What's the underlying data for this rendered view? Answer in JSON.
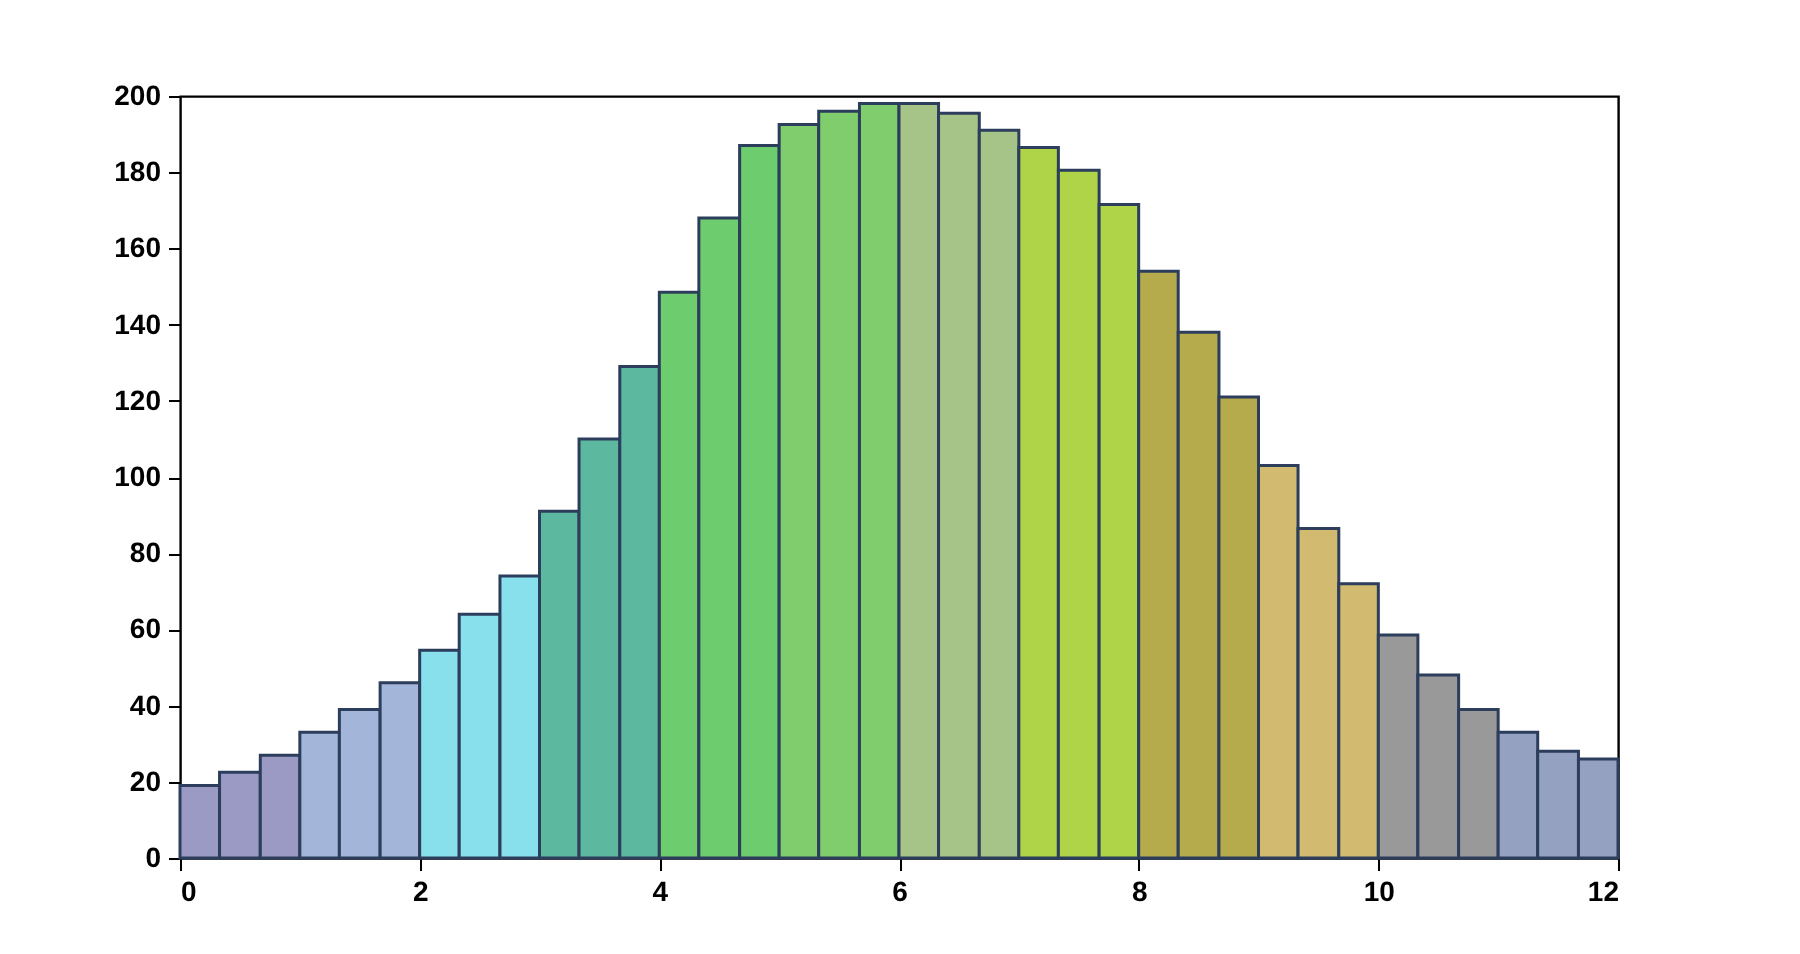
{
  "chart_data": {
    "type": "histogram",
    "bins": [
      0,
      0.33,
      0.67,
      1,
      1.33,
      1.67,
      2,
      2.33,
      2.67,
      3,
      3.33,
      3.67,
      4,
      4.33,
      4.67,
      5,
      5.33,
      5.67,
      6,
      6.33,
      6.67,
      7,
      7.33,
      7.67,
      8,
      8.33,
      8.67,
      9,
      9.33,
      9.67,
      10,
      10.33,
      10.67,
      11,
      11.33,
      11.67,
      12
    ],
    "values": [
      19,
      22.5,
      27,
      33,
      39,
      46,
      54.5,
      64,
      74,
      91,
      110,
      129,
      148.5,
      168,
      187,
      192.5,
      196,
      198,
      198,
      195.5,
      191,
      186.5,
      180.5,
      171.5,
      154,
      138,
      121,
      103,
      86.5,
      72,
      58.5,
      48,
      39,
      33,
      28,
      26
    ],
    "colors": [
      "#9a9ac4",
      "#9a9ac4",
      "#9a9ac4",
      "#a3b5d9",
      "#a3b5d9",
      "#a3b5d9",
      "#87e0ec",
      "#87e0ec",
      "#87e0ec",
      "#5db8a0",
      "#5db8a0",
      "#5db8a0",
      "#6dcc6e",
      "#6dcc6e",
      "#6dcc6e",
      "#7fcd6c",
      "#7fcd6c",
      "#7fcd6c",
      "#a6c388",
      "#a6c388",
      "#a6c388",
      "#afd448",
      "#afd448",
      "#afd448",
      "#b5ab4d",
      "#b5ab4d",
      "#b5ab4d",
      "#d2bb70",
      "#d2bb70",
      "#d2bb70",
      "#999999",
      "#999999",
      "#999999",
      "#95a1c0",
      "#95a1c0",
      "#95a1c0"
    ],
    "xlim": [
      0,
      12
    ],
    "xticks": [
      0,
      2,
      4,
      6,
      8,
      10,
      12
    ],
    "ylim": [
      0,
      200
    ],
    "yticks": [
      0,
      20,
      40,
      60,
      80,
      100,
      120,
      140,
      160,
      180,
      200
    ],
    "grid": false
  }
}
